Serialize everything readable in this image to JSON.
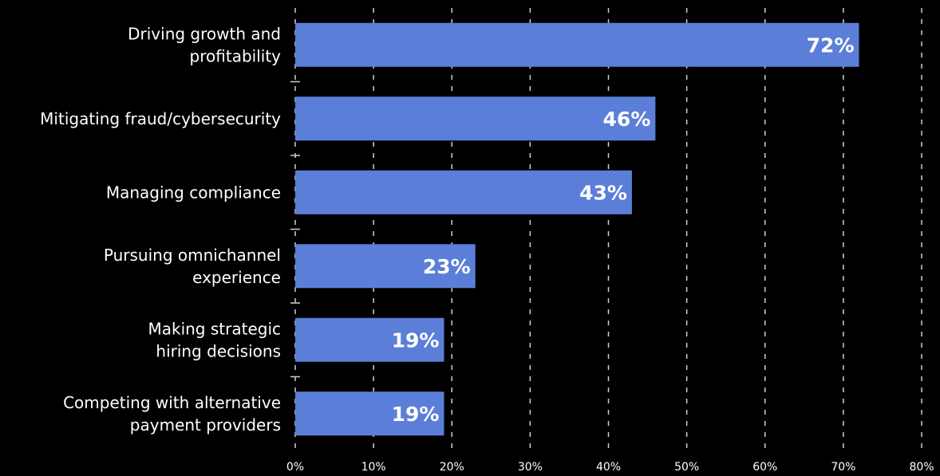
{
  "chart_data": {
    "type": "bar",
    "orientation": "horizontal",
    "categories": [
      [
        "Driving growth and",
        "profitability"
      ],
      [
        "Mitigating fraud/cybersecurity"
      ],
      [
        "Managing compliance"
      ],
      [
        "Pursuing omnichannel",
        "experience"
      ],
      [
        "Making strategic",
        "hiring decisions"
      ],
      [
        "Competing with alternative",
        "payment providers"
      ]
    ],
    "values": [
      72,
      46,
      43,
      23,
      19,
      19
    ],
    "data_labels": [
      "72%",
      "46%",
      "43%",
      "23%",
      "19%",
      "19%"
    ],
    "xlim": [
      0,
      80
    ],
    "x_ticks": [
      0,
      10,
      20,
      30,
      40,
      50,
      60,
      70,
      80
    ],
    "x_tick_labels": [
      "0%",
      "10%",
      "20%",
      "30%",
      "40%",
      "50%",
      "60%",
      "70%",
      "80%"
    ],
    "grid": true,
    "bar_color": "#5b7fd8",
    "background_color": "#000000",
    "text_color": "#ffffff"
  }
}
